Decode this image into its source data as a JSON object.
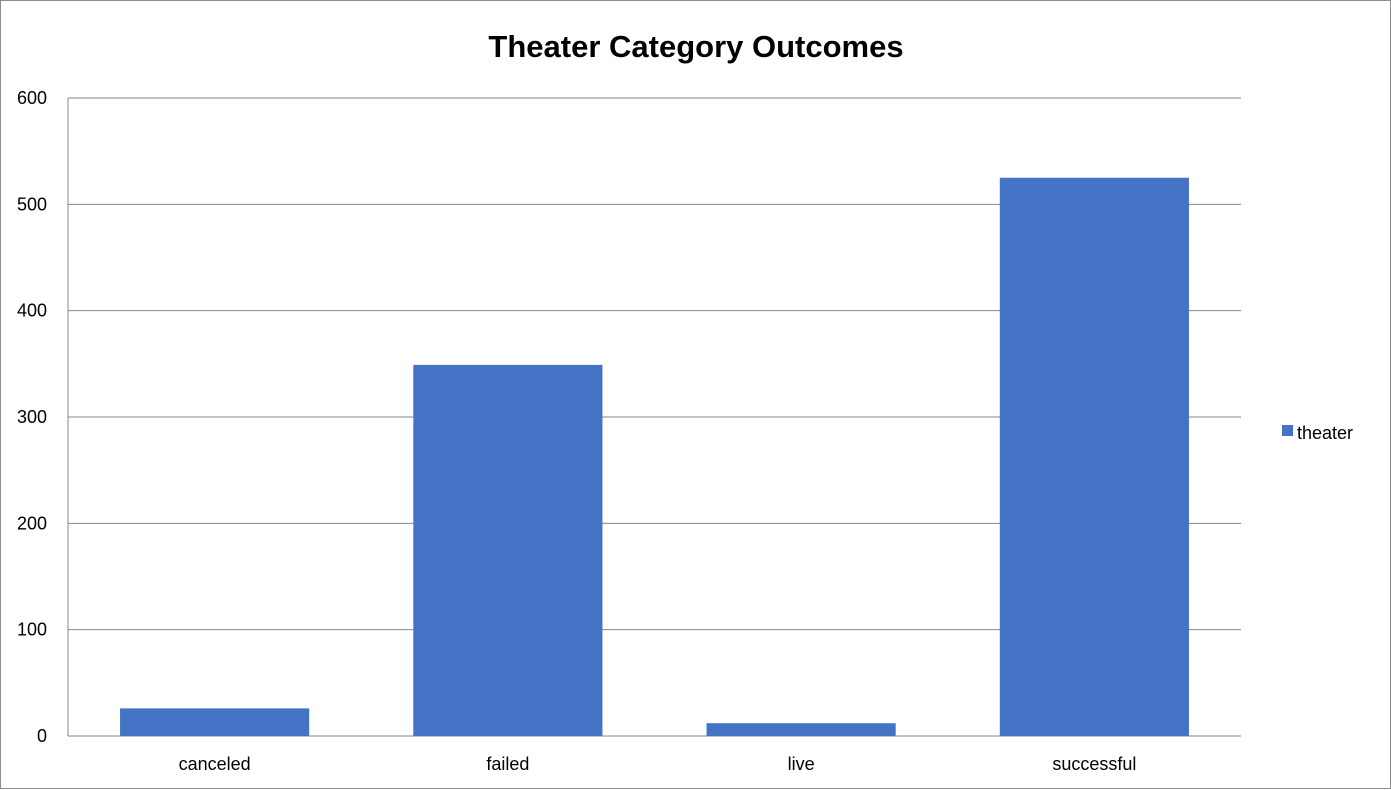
{
  "chart_data": {
    "type": "bar",
    "title": "Theater Category Outcomes",
    "xlabel": "",
    "ylabel": "",
    "categories": [
      "canceled",
      "failed",
      "live",
      "successful"
    ],
    "series": [
      {
        "name": "theater",
        "values": [
          26,
          349,
          12,
          525
        ],
        "color": "#4472C4"
      }
    ],
    "ylim": [
      0,
      600
    ],
    "yticks": [
      0,
      100,
      200,
      300,
      400,
      500,
      600
    ],
    "grid": true,
    "legend_position": "right"
  }
}
